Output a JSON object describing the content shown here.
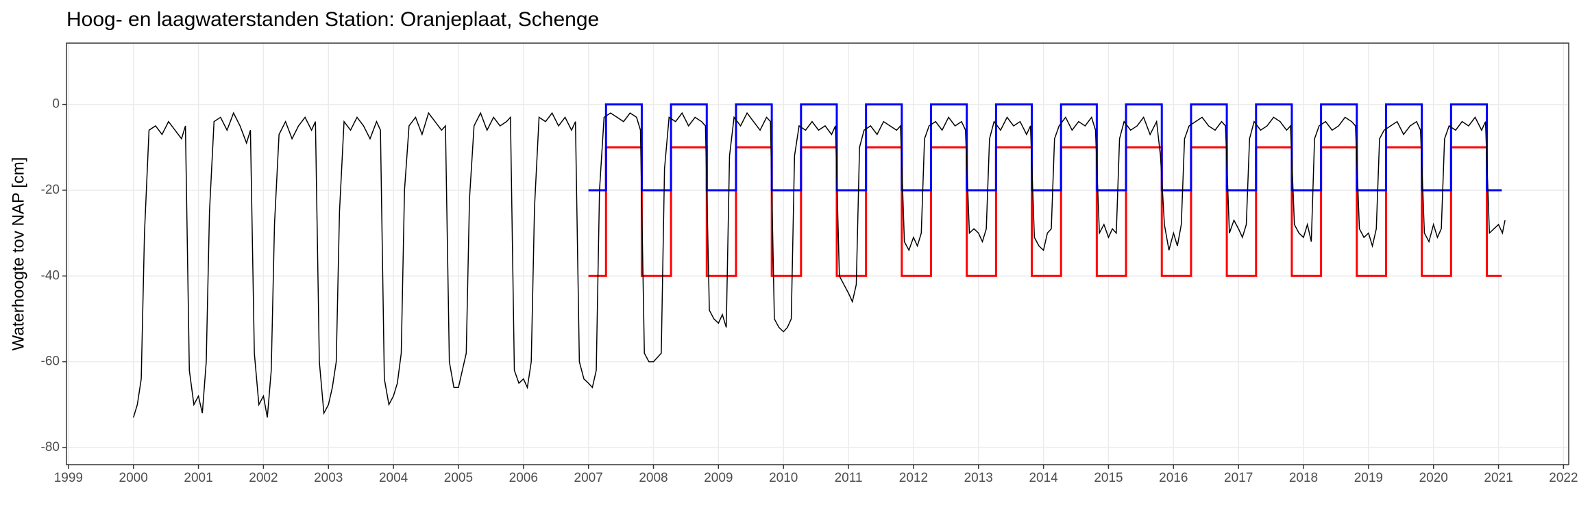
{
  "chart_data": {
    "type": "line",
    "title": "Hoog- en laagwaterstanden Station: Oranjeplaat, Schenge",
    "y_label": "Waterhoogte tov NAP [cm]",
    "xlim": [
      1998.97,
      2022.08
    ],
    "xticks": [
      1999,
      2000,
      2001,
      2002,
      2003,
      2004,
      2005,
      2006,
      2007,
      2008,
      2009,
      2010,
      2011,
      2012,
      2013,
      2014,
      2015,
      2016,
      2017,
      2018,
      2019,
      2020,
      2021,
      2022
    ],
    "ylim": [
      -84,
      14.3
    ],
    "yticks": [
      -80,
      -60,
      -40,
      -20,
      0
    ],
    "grid": true,
    "series": [
      {
        "color": "#ff0000",
        "width": 3,
        "x": [
          2007.0,
          2007.27,
          2007.27,
          2007.82,
          2007.82,
          2008.27,
          2008.27,
          2008.82,
          2008.82,
          2009.27,
          2009.27,
          2009.82,
          2009.82,
          2010.27,
          2010.27,
          2010.82,
          2010.82,
          2011.27,
          2011.27,
          2011.82,
          2011.82,
          2012.27,
          2012.27,
          2012.82,
          2012.82,
          2013.27,
          2013.27,
          2013.82,
          2013.82,
          2014.27,
          2014.27,
          2014.82,
          2014.82,
          2015.27,
          2015.27,
          2015.82,
          2015.82,
          2016.27,
          2016.27,
          2016.82,
          2016.82,
          2017.27,
          2017.27,
          2017.82,
          2017.82,
          2018.27,
          2018.27,
          2018.82,
          2018.82,
          2019.27,
          2019.27,
          2019.82,
          2019.82,
          2020.27,
          2020.27,
          2020.82,
          2020.82,
          2021.05
        ],
        "values": [
          -40,
          -40,
          -10,
          -10,
          -40,
          -40,
          -10,
          -10,
          -40,
          -40,
          -10,
          -10,
          -40,
          -40,
          -10,
          -10,
          -40,
          -40,
          -10,
          -10,
          -40,
          -40,
          -10,
          -10,
          -40,
          -40,
          -10,
          -10,
          -40,
          -40,
          -10,
          -10,
          -40,
          -40,
          -10,
          -10,
          -40,
          -40,
          -10,
          -10,
          -40,
          -40,
          -10,
          -10,
          -40,
          -40,
          -10,
          -10,
          -40,
          -40,
          -10,
          -10,
          -40,
          -40,
          -10,
          -10,
          -40,
          -40
        ]
      },
      {
        "color": "#0000ff",
        "width": 3,
        "x": [
          2007.0,
          2007.27,
          2007.27,
          2007.82,
          2007.82,
          2008.27,
          2008.27,
          2008.82,
          2008.82,
          2009.27,
          2009.27,
          2009.82,
          2009.82,
          2010.27,
          2010.27,
          2010.82,
          2010.82,
          2011.27,
          2011.27,
          2011.82,
          2011.82,
          2012.27,
          2012.27,
          2012.82,
          2012.82,
          2013.27,
          2013.27,
          2013.82,
          2013.82,
          2014.27,
          2014.27,
          2014.82,
          2014.82,
          2015.27,
          2015.27,
          2015.82,
          2015.82,
          2016.27,
          2016.27,
          2016.82,
          2016.82,
          2017.27,
          2017.27,
          2017.82,
          2017.82,
          2018.27,
          2018.27,
          2018.82,
          2018.82,
          2019.27,
          2019.27,
          2019.82,
          2019.82,
          2020.27,
          2020.27,
          2020.82,
          2020.82,
          2021.05
        ],
        "values": [
          -20,
          -20,
          0,
          0,
          -20,
          -20,
          0,
          0,
          -20,
          -20,
          0,
          0,
          -20,
          -20,
          0,
          0,
          -20,
          -20,
          0,
          0,
          -20,
          -20,
          0,
          0,
          -20,
          -20,
          0,
          0,
          -20,
          -20,
          0,
          0,
          -20,
          -20,
          0,
          0,
          -20,
          -20,
          0,
          0,
          -20,
          -20,
          0,
          0,
          -20,
          -20,
          0,
          0,
          -20,
          -20,
          0,
          0,
          -20,
          -20,
          0,
          0,
          -20,
          -20
        ]
      },
      {
        "color": "#000000",
        "width": 1.5,
        "x": [
          2000.0,
          2000.06,
          2000.12,
          2000.17,
          2000.24,
          2000.34,
          2000.44,
          2000.54,
          2000.64,
          2000.74,
          2000.8,
          2000.86,
          2000.93,
          2001.0,
          2001.06,
          2001.12,
          2001.17,
          2001.24,
          2001.34,
          2001.44,
          2001.54,
          2001.64,
          2001.74,
          2001.8,
          2001.86,
          2001.93,
          2002.0,
          2002.06,
          2002.12,
          2002.17,
          2002.24,
          2002.34,
          2002.44,
          2002.54,
          2002.64,
          2002.74,
          2002.8,
          2002.86,
          2002.93,
          2003.0,
          2003.06,
          2003.12,
          2003.17,
          2003.24,
          2003.34,
          2003.44,
          2003.54,
          2003.64,
          2003.74,
          2003.8,
          2003.86,
          2003.93,
          2004.0,
          2004.06,
          2004.12,
          2004.17,
          2004.24,
          2004.34,
          2004.44,
          2004.54,
          2004.64,
          2004.74,
          2004.8,
          2004.86,
          2004.93,
          2005.0,
          2005.06,
          2005.12,
          2005.17,
          2005.24,
          2005.34,
          2005.44,
          2005.54,
          2005.64,
          2005.74,
          2005.8,
          2005.86,
          2005.93,
          2006.0,
          2006.06,
          2006.12,
          2006.17,
          2006.24,
          2006.34,
          2006.44,
          2006.54,
          2006.64,
          2006.74,
          2006.8,
          2006.86,
          2006.93,
          2007.0,
          2007.06,
          2007.12,
          2007.17,
          2007.24,
          2007.34,
          2007.44,
          2007.54,
          2007.64,
          2007.74,
          2007.8,
          2007.86,
          2007.93,
          2008.0,
          2008.06,
          2008.12,
          2008.17,
          2008.24,
          2008.34,
          2008.44,
          2008.54,
          2008.64,
          2008.74,
          2008.8,
          2008.86,
          2008.93,
          2009.0,
          2009.06,
          2009.12,
          2009.17,
          2009.24,
          2009.34,
          2009.44,
          2009.54,
          2009.64,
          2009.74,
          2009.8,
          2009.86,
          2009.93,
          2010.0,
          2010.06,
          2010.12,
          2010.17,
          2010.24,
          2010.34,
          2010.44,
          2010.54,
          2010.64,
          2010.74,
          2010.8,
          2010.86,
          2010.93,
          2011.0,
          2011.06,
          2011.12,
          2011.17,
          2011.24,
          2011.34,
          2011.44,
          2011.54,
          2011.64,
          2011.74,
          2011.8,
          2011.86,
          2011.93,
          2012.0,
          2012.06,
          2012.12,
          2012.17,
          2012.24,
          2012.34,
          2012.44,
          2012.54,
          2012.64,
          2012.74,
          2012.8,
          2012.86,
          2012.93,
          2013.0,
          2013.06,
          2013.12,
          2013.17,
          2013.24,
          2013.34,
          2013.44,
          2013.54,
          2013.64,
          2013.74,
          2013.8,
          2013.86,
          2013.93,
          2014.0,
          2014.06,
          2014.12,
          2014.17,
          2014.24,
          2014.34,
          2014.44,
          2014.54,
          2014.64,
          2014.74,
          2014.8,
          2014.86,
          2014.93,
          2015.0,
          2015.06,
          2015.12,
          2015.17,
          2015.24,
          2015.34,
          2015.44,
          2015.54,
          2015.64,
          2015.74,
          2015.8,
          2015.86,
          2015.93,
          2016.0,
          2016.06,
          2016.12,
          2016.17,
          2016.24,
          2016.34,
          2016.44,
          2016.54,
          2016.64,
          2016.74,
          2016.8,
          2016.86,
          2016.93,
          2017.0,
          2017.06,
          2017.12,
          2017.17,
          2017.24,
          2017.34,
          2017.44,
          2017.54,
          2017.64,
          2017.74,
          2017.8,
          2017.86,
          2017.93,
          2018.0,
          2018.06,
          2018.12,
          2018.17,
          2018.24,
          2018.34,
          2018.44,
          2018.54,
          2018.64,
          2018.74,
          2018.8,
          2018.86,
          2018.93,
          2019.0,
          2019.06,
          2019.12,
          2019.17,
          2019.24,
          2019.34,
          2019.44,
          2019.54,
          2019.64,
          2019.74,
          2019.8,
          2019.86,
          2019.93,
          2020.0,
          2020.06,
          2020.12,
          2020.17,
          2020.24,
          2020.34,
          2020.44,
          2020.54,
          2020.64,
          2020.74,
          2020.8,
          2020.86,
          2020.93,
          2021.0,
          2021.06,
          2021.1
        ],
        "values": [
          -73,
          -70,
          -64,
          -30,
          -6,
          -5,
          -7,
          -4,
          -6,
          -8,
          -5,
          -62,
          -70,
          -68,
          -72,
          -60,
          -25,
          -4,
          -3,
          -6,
          -2,
          -5,
          -9,
          -6,
          -58,
          -70,
          -68,
          -73,
          -62,
          -28,
          -7,
          -4,
          -8,
          -5,
          -3,
          -6,
          -4,
          -60,
          -72,
          -70,
          -66,
          -60,
          -25,
          -4,
          -6,
          -3,
          -5,
          -8,
          -4,
          -6,
          -64,
          -70,
          -68,
          -65,
          -58,
          -20,
          -5,
          -3,
          -7,
          -2,
          -4,
          -6,
          -5,
          -60,
          -66,
          -66,
          -62,
          -58,
          -22,
          -5,
          -2,
          -6,
          -3,
          -5,
          -4,
          -3,
          -62,
          -65,
          -64,
          -66,
          -60,
          -24,
          -3,
          -4,
          -2,
          -5,
          -3,
          -6,
          -4,
          -60,
          -64,
          -65,
          -66,
          -62,
          -20,
          -3,
          -2,
          -3,
          -4,
          -2,
          -3,
          -6,
          -58,
          -60,
          -60,
          -59,
          -58,
          -15,
          -3,
          -4,
          -2,
          -5,
          -3,
          -4,
          -5,
          -48,
          -50,
          -51,
          -49,
          -52,
          -12,
          -3,
          -5,
          -2,
          -4,
          -6,
          -3,
          -4,
          -50,
          -52,
          -53,
          -52,
          -50,
          -12,
          -5,
          -6,
          -4,
          -6,
          -5,
          -7,
          -5,
          -40,
          -42,
          -44,
          -46,
          -42,
          -10,
          -6,
          -5,
          -7,
          -4,
          -5,
          -6,
          -5,
          -32,
          -34,
          -31,
          -33,
          -30,
          -8,
          -5,
          -4,
          -6,
          -3,
          -5,
          -4,
          -6,
          -30,
          -29,
          -30,
          -32,
          -29,
          -8,
          -4,
          -6,
          -3,
          -5,
          -4,
          -7,
          -5,
          -31,
          -33,
          -34,
          -30,
          -29,
          -8,
          -5,
          -3,
          -6,
          -4,
          -5,
          -3,
          -6,
          -30,
          -28,
          -31,
          -29,
          -30,
          -8,
          -4,
          -6,
          -5,
          -3,
          -7,
          -4,
          -12,
          -28,
          -34,
          -30,
          -33,
          -28,
          -8,
          -5,
          -4,
          -3,
          -5,
          -6,
          -4,
          -5,
          -30,
          -27,
          -29,
          -31,
          -28,
          -8,
          -4,
          -6,
          -5,
          -3,
          -4,
          -6,
          -5,
          -28,
          -30,
          -31,
          -28,
          -32,
          -8,
          -5,
          -4,
          -6,
          -5,
          -3,
          -4,
          -5,
          -29,
          -31,
          -30,
          -33,
          -29,
          -8,
          -6,
          -5,
          -4,
          -7,
          -5,
          -4,
          -6,
          -30,
          -32,
          -28,
          -31,
          -29,
          -8,
          -5,
          -6,
          -4,
          -5,
          -3,
          -6,
          -4,
          -30,
          -29,
          -28,
          -30,
          -27
        ]
      }
    ]
  }
}
